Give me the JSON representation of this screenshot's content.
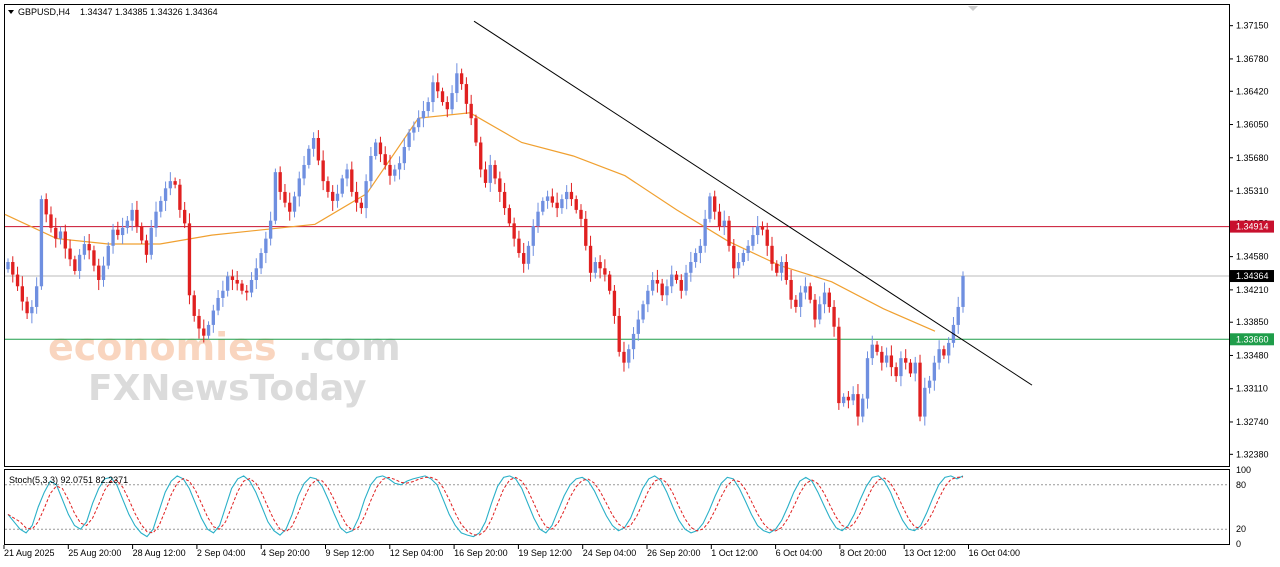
{
  "header": {
    "symbol": "GBPUSD,H4",
    "ohlc": "1.34347 1.34385 1.34326 1.34364"
  },
  "stoch_header": "Stoch(5,3,3) 92.0751 82.2371",
  "watermark": {
    "brand": "economies",
    "brand_suffix": ".com",
    "brand2": "FXNewsToday"
  },
  "chart_data": {
    "type": "candlestick",
    "price_ylim": [
      1.3225,
      1.3738
    ],
    "y_ticks": [
      "1.37150",
      "1.36780",
      "1.36420",
      "1.36050",
      "1.35680",
      "1.35310",
      "1.34950",
      "1.34580",
      "1.34210",
      "1.33850",
      "1.33480",
      "1.33110",
      "1.32740",
      "1.32380"
    ],
    "x_tick_labels": [
      "21 Aug 2025",
      "25 Aug 20:00",
      "28 Aug 12:00",
      "2 Sep 04:00",
      "4 Sep 20:00",
      "9 Sep 12:00",
      "12 Sep 04:00",
      "16 Sep 20:00",
      "19 Sep 12:00",
      "24 Sep 04:00",
      "26 Sep 20:00",
      "1 Oct 12:00",
      "6 Oct 04:00",
      "8 Oct 20:00",
      "13 Oct 12:00",
      "16 Oct 04:00"
    ],
    "closes": [
      1.3452,
      1.3438,
      1.3425,
      1.3408,
      1.3395,
      1.3402,
      1.3425,
      1.3522,
      1.3505,
      1.349,
      1.3478,
      1.3486,
      1.3467,
      1.3455,
      1.3442,
      1.346,
      1.3472,
      1.3465,
      1.3448,
      1.3432,
      1.3448,
      1.347,
      1.3488,
      1.3482,
      1.349,
      1.3498,
      1.351,
      1.3492,
      1.3476,
      1.346,
      1.349,
      1.3508,
      1.352,
      1.3534,
      1.3542,
      1.3538,
      1.351,
      1.3495,
      1.3415,
      1.3392,
      1.3378,
      1.337,
      1.3382,
      1.3398,
      1.3412,
      1.342,
      1.3436,
      1.3432,
      1.3428,
      1.342,
      1.3418,
      1.3432,
      1.3445,
      1.3462,
      1.3478,
      1.3498,
      1.3552,
      1.353,
      1.3518,
      1.3508,
      1.3525,
      1.3545,
      1.356,
      1.3578,
      1.359,
      1.3565,
      1.3542,
      1.353,
      1.352,
      1.3528,
      1.3545,
      1.3555,
      1.353,
      1.3518,
      1.3512,
      1.3542,
      1.357,
      1.3585,
      1.3572,
      1.356,
      1.3548,
      1.3555,
      1.3562,
      1.358,
      1.3596,
      1.3602,
      1.3612,
      1.362,
      1.363,
      1.3652,
      1.3642,
      1.363,
      1.3622,
      1.364,
      1.3662,
      1.365,
      1.3628,
      1.3612,
      1.3585,
      1.3555,
      1.354,
      1.356,
      1.3545,
      1.353,
      1.3512,
      1.3495,
      1.3478,
      1.3462,
      1.345,
      1.347,
      1.3492,
      1.3508,
      1.352,
      1.3525,
      1.3518,
      1.3512,
      1.3522,
      1.353,
      1.3522,
      1.351,
      1.35,
      1.347,
      1.344,
      1.3452,
      1.3445,
      1.3438,
      1.342,
      1.3392,
      1.3352,
      1.334,
      1.3355,
      1.3372,
      1.3388,
      1.3405,
      1.342,
      1.3432,
      1.3428,
      1.3415,
      1.3425,
      1.3438,
      1.3432,
      1.342,
      1.344,
      1.3452,
      1.3462,
      1.347,
      1.35,
      1.3525,
      1.3508,
      1.3492,
      1.3498,
      1.347,
      1.3445,
      1.3452,
      1.3462,
      1.347,
      1.3482,
      1.3492,
      1.3488,
      1.347,
      1.345,
      1.344,
      1.3452,
      1.3432,
      1.341,
      1.3402,
      1.3418,
      1.3425,
      1.341,
      1.3388,
      1.3405,
      1.3418,
      1.3402,
      1.338,
      1.3295,
      1.3302,
      1.3298,
      1.3305,
      1.328,
      1.33,
      1.3345,
      1.336,
      1.3352,
      1.334,
      1.3348,
      1.3335,
      1.3325,
      1.3345,
      1.334,
      1.3328,
      1.334,
      1.328,
      1.3312,
      1.332,
      1.334,
      1.3355,
      1.3348,
      1.3362,
      1.3382,
      1.3402,
      1.34364
    ],
    "ma_values": [
      1.3505,
      1.3478,
      1.3472,
      1.3472,
      1.3482,
      1.3488,
      1.3494,
      1.3528,
      1.3612,
      1.3618,
      1.3585,
      1.357,
      1.3548,
      1.351,
      1.3475,
      1.3448,
      1.343,
      1.34,
      1.3375
    ],
    "h_lines": [
      {
        "value": 1.34914,
        "label": "1.34914",
        "color": "#c8102e"
      },
      {
        "value": 1.34364,
        "label": "1.34364",
        "color": "#000000"
      },
      {
        "value": 1.3366,
        "label": "1.33660",
        "color": "#1f9d4a"
      }
    ],
    "trendline": {
      "from": [
        1.372
      ],
      "to": [
        1.3315
      ]
    },
    "stochastic": {
      "levels": [
        20,
        80
      ],
      "y_ticks": [
        "100",
        "80",
        "20",
        "0"
      ],
      "k": [
        40,
        30,
        20,
        15,
        25,
        50,
        70,
        85,
        80,
        60,
        40,
        25,
        20,
        30,
        55,
        75,
        88,
        90,
        80,
        60,
        40,
        25,
        15,
        10,
        20,
        45,
        70,
        85,
        92,
        88,
        75,
        55,
        35,
        20,
        15,
        25,
        50,
        75,
        88,
        92,
        85,
        70,
        50,
        30,
        18,
        12,
        20,
        40,
        65,
        82,
        90,
        88,
        78,
        60,
        40,
        22,
        15,
        18,
        35,
        60,
        80,
        90,
        92,
        88,
        82,
        80,
        85,
        88,
        90,
        92,
        88,
        80,
        60,
        40,
        25,
        15,
        12,
        10,
        15,
        30,
        55,
        78,
        90,
        92,
        88,
        75,
        55,
        35,
        20,
        15,
        25,
        45,
        65,
        80,
        88,
        90,
        85,
        72,
        55,
        38,
        25,
        18,
        22,
        35,
        55,
        75,
        88,
        92,
        86,
        70,
        50,
        32,
        20,
        15,
        18,
        28,
        45,
        65,
        82,
        90,
        88,
        75,
        58,
        40,
        25,
        18,
        15,
        20,
        32,
        50,
        70,
        85,
        90,
        85,
        70,
        52,
        35,
        22,
        18,
        25,
        40,
        60,
        78,
        90,
        92,
        85,
        70,
        50,
        32,
        20,
        18,
        25,
        42,
        62,
        80,
        90,
        92,
        88,
        92
      ]
    }
  }
}
